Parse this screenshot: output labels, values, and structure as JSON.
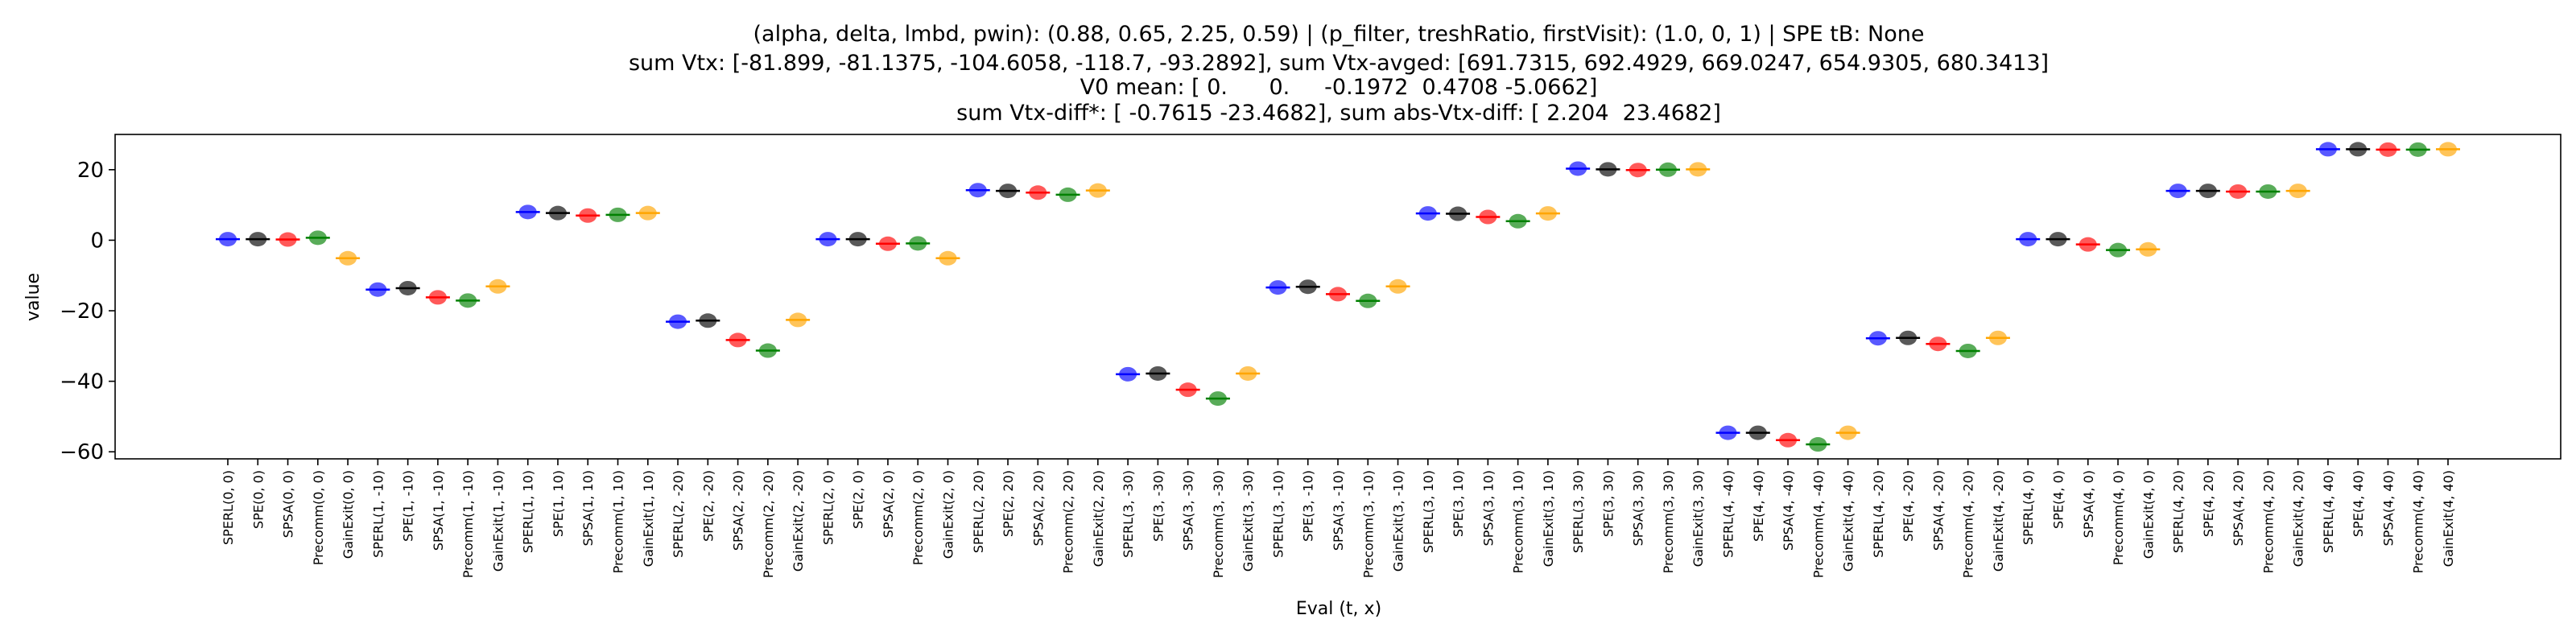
{
  "chart_data": {
    "type": "scatter",
    "title_lines": [
      "(alpha, delta, lmbd, pwin): (0.88, 0.65, 2.25, 0.59) | (p_filter, treshRatio, firstVisit): (1.0, 0, 1) | SPE tB: None",
      "sum Vtx: [-81.899, -81.1375, -104.6058, -118.7, -93.2892], sum Vtx-avged: [691.7315, 692.4929, 669.0247, 654.9305, 680.3413]",
      "V0 mean: [ 0.      0.     -0.1972  0.4708 -5.0662]",
      "sum Vtx-diff*: [ -0.7615 -23.4682], sum abs-Vtx-diff: [ 2.204  23.4682]"
    ],
    "xlabel": "Eval (t, x)",
    "ylabel": "value",
    "ylim": [
      -62,
      30
    ],
    "yticks": [
      20,
      0,
      -20,
      -40,
      -60
    ],
    "grid": false,
    "legend": "none",
    "method_colors": {
      "SPERL": "#0000ff",
      "SPE": "#000000",
      "SPSA": "#ff0000",
      "Precomm": "#008000",
      "GainExit": "#ffa500"
    },
    "points": [
      {
        "label": "SPERL(0, 0)",
        "method": "SPERL",
        "value": 0.3
      },
      {
        "label": "SPE(0, 0)",
        "method": "SPE",
        "value": 0.3
      },
      {
        "label": "SPSA(0, 0)",
        "method": "SPSA",
        "value": 0.2
      },
      {
        "label": "Precomm(0, 0)",
        "method": "Precomm",
        "value": 0.7
      },
      {
        "label": "GainExit(0, 0)",
        "method": "GainExit",
        "value": -5.1
      },
      {
        "label": "SPERL(1, -10)",
        "method": "SPERL",
        "value": -14.0
      },
      {
        "label": "SPE(1, -10)",
        "method": "SPE",
        "value": -13.6
      },
      {
        "label": "SPSA(1, -10)",
        "method": "SPSA",
        "value": -16.2
      },
      {
        "label": "Precomm(1, -10)",
        "method": "Precomm",
        "value": -17.1
      },
      {
        "label": "GainExit(1, -10)",
        "method": "GainExit",
        "value": -13.1
      },
      {
        "label": "SPERL(1, 10)",
        "method": "SPERL",
        "value": 8.0
      },
      {
        "label": "SPE(1, 10)",
        "method": "SPE",
        "value": 7.7
      },
      {
        "label": "SPSA(1, 10)",
        "method": "SPSA",
        "value": 7.0
      },
      {
        "label": "Precomm(1, 10)",
        "method": "Precomm",
        "value": 7.2
      },
      {
        "label": "GainExit(1, 10)",
        "method": "GainExit",
        "value": 7.7
      },
      {
        "label": "SPERL(2, -20)",
        "method": "SPERL",
        "value": -23.1
      },
      {
        "label": "SPE(2, -20)",
        "method": "SPE",
        "value": -22.8
      },
      {
        "label": "SPSA(2, -20)",
        "method": "SPSA",
        "value": -28.3
      },
      {
        "label": "Precomm(2, -20)",
        "method": "Precomm",
        "value": -31.3
      },
      {
        "label": "GainExit(2, -20)",
        "method": "GainExit",
        "value": -22.6
      },
      {
        "label": "SPERL(2, 0)",
        "method": "SPERL",
        "value": 0.3
      },
      {
        "label": "SPE(2, 0)",
        "method": "SPE",
        "value": 0.3
      },
      {
        "label": "SPSA(2, 0)",
        "method": "SPSA",
        "value": -1.0
      },
      {
        "label": "Precomm(2, 0)",
        "method": "Precomm",
        "value": -0.9
      },
      {
        "label": "GainExit(2, 0)",
        "method": "GainExit",
        "value": -5.1
      },
      {
        "label": "SPERL(2, 20)",
        "method": "SPERL",
        "value": 14.2
      },
      {
        "label": "SPE(2, 20)",
        "method": "SPE",
        "value": 14.0
      },
      {
        "label": "SPSA(2, 20)",
        "method": "SPSA",
        "value": 13.5
      },
      {
        "label": "Precomm(2, 20)",
        "method": "Precomm",
        "value": 12.9
      },
      {
        "label": "GainExit(2, 20)",
        "method": "GainExit",
        "value": 14.1
      },
      {
        "label": "SPERL(3, -30)",
        "method": "SPERL",
        "value": -38.0
      },
      {
        "label": "SPE(3, -30)",
        "method": "SPE",
        "value": -37.8
      },
      {
        "label": "SPSA(3, -30)",
        "method": "SPSA",
        "value": -42.4
      },
      {
        "label": "Precomm(3, -30)",
        "method": "Precomm",
        "value": -44.9
      },
      {
        "label": "GainExit(3, -30)",
        "method": "GainExit",
        "value": -37.8
      },
      {
        "label": "SPERL(3, -10)",
        "method": "SPERL",
        "value": -13.4
      },
      {
        "label": "SPE(3, -10)",
        "method": "SPE",
        "value": -13.2
      },
      {
        "label": "SPSA(3, -10)",
        "method": "SPSA",
        "value": -15.3
      },
      {
        "label": "Precomm(3, -10)",
        "method": "Precomm",
        "value": -17.2
      },
      {
        "label": "GainExit(3, -10)",
        "method": "GainExit",
        "value": -13.1
      },
      {
        "label": "SPERL(3, 10)",
        "method": "SPERL",
        "value": 7.6
      },
      {
        "label": "SPE(3, 10)",
        "method": "SPE",
        "value": 7.5
      },
      {
        "label": "SPSA(3, 10)",
        "method": "SPSA",
        "value": 6.6
      },
      {
        "label": "Precomm(3, 10)",
        "method": "Precomm",
        "value": 5.4
      },
      {
        "label": "GainExit(3, 10)",
        "method": "GainExit",
        "value": 7.6
      },
      {
        "label": "SPERL(3, 30)",
        "method": "SPERL",
        "value": 20.3
      },
      {
        "label": "SPE(3, 30)",
        "method": "SPE",
        "value": 20.1
      },
      {
        "label": "SPSA(3, 30)",
        "method": "SPSA",
        "value": 19.9
      },
      {
        "label": "Precomm(3, 30)",
        "method": "Precomm",
        "value": 20.0
      },
      {
        "label": "GainExit(3, 30)",
        "method": "GainExit",
        "value": 20.1
      },
      {
        "label": "SPERL(4, -40)",
        "method": "SPERL",
        "value": -54.6
      },
      {
        "label": "SPE(4, -40)",
        "method": "SPE",
        "value": -54.6
      },
      {
        "label": "SPSA(4, -40)",
        "method": "SPSA",
        "value": -56.7
      },
      {
        "label": "Precomm(4, -40)",
        "method": "Precomm",
        "value": -57.9
      },
      {
        "label": "GainExit(4, -40)",
        "method": "GainExit",
        "value": -54.6
      },
      {
        "label": "SPERL(4, -20)",
        "method": "SPERL",
        "value": -27.8
      },
      {
        "label": "SPE(4, -20)",
        "method": "SPE",
        "value": -27.7
      },
      {
        "label": "SPSA(4, -20)",
        "method": "SPSA",
        "value": -29.4
      },
      {
        "label": "Precomm(4, -20)",
        "method": "Precomm",
        "value": -31.4
      },
      {
        "label": "GainExit(4, -20)",
        "method": "GainExit",
        "value": -27.7
      },
      {
        "label": "SPERL(4, 0)",
        "method": "SPERL",
        "value": 0.3
      },
      {
        "label": "SPE(4, 0)",
        "method": "SPE",
        "value": 0.3
      },
      {
        "label": "SPSA(4, 0)",
        "method": "SPSA",
        "value": -1.2
      },
      {
        "label": "Precomm(4, 0)",
        "method": "Precomm",
        "value": -2.8
      },
      {
        "label": "GainExit(4, 0)",
        "method": "GainExit",
        "value": -2.6
      },
      {
        "label": "SPERL(4, 20)",
        "method": "SPERL",
        "value": 14.0
      },
      {
        "label": "SPE(4, 20)",
        "method": "SPE",
        "value": 14.0
      },
      {
        "label": "SPSA(4, 20)",
        "method": "SPSA",
        "value": 13.8
      },
      {
        "label": "Precomm(4, 20)",
        "method": "Precomm",
        "value": 13.8
      },
      {
        "label": "GainExit(4, 20)",
        "method": "GainExit",
        "value": 14.0
      },
      {
        "label": "SPERL(4, 40)",
        "method": "SPERL",
        "value": 25.8
      },
      {
        "label": "SPE(4, 40)",
        "method": "SPE",
        "value": 25.8
      },
      {
        "label": "SPSA(4, 40)",
        "method": "SPSA",
        "value": 25.7
      },
      {
        "label": "Precomm(4, 40)",
        "method": "Precomm",
        "value": 25.7
      },
      {
        "label": "GainExit(4, 40)",
        "method": "GainExit",
        "value": 25.8
      }
    ]
  }
}
